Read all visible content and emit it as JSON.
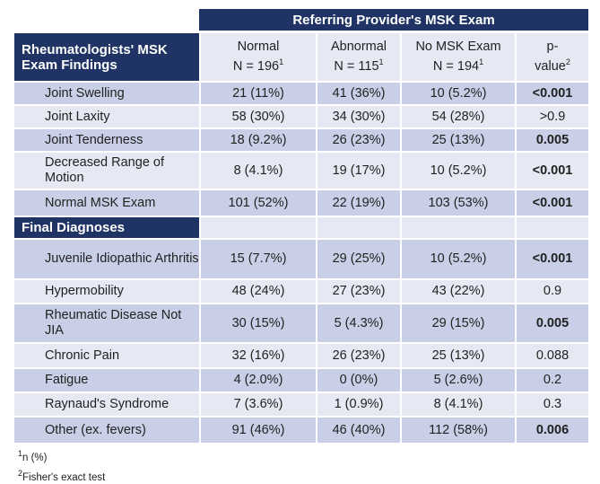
{
  "group_header": "Referring Provider's MSK Exam",
  "section1_title": "Rheumatologists' MSK Exam Findings",
  "section2_title": "Final Diagnoses",
  "columns": [
    {
      "label": "Normal",
      "n": "N = 196",
      "sup": "1"
    },
    {
      "label": "Abnormal",
      "n": "N = 115",
      "sup": "1"
    },
    {
      "label": "No MSK Exam",
      "n": "N = 194",
      "sup": "1"
    },
    {
      "label": "p-value",
      "sup": "2"
    }
  ],
  "section1_rows": [
    {
      "label": "Joint Swelling",
      "values": [
        "21 (11%)",
        "41 (36%)",
        "10 (5.2%)"
      ],
      "p": "<0.001",
      "bold": true
    },
    {
      "label": "Joint Laxity",
      "values": [
        "58 (30%)",
        "34 (30%)",
        "54 (28%)"
      ],
      "p": ">0.9",
      "bold": false
    },
    {
      "label": "Joint Tenderness",
      "values": [
        "18 (9.2%)",
        "26 (23%)",
        "25 (13%)"
      ],
      "p": "0.005",
      "bold": true
    },
    {
      "label": "Decreased Range of Motion",
      "values": [
        "8 (4.1%)",
        "19 (17%)",
        "10 (5.2%)"
      ],
      "p": "<0.001",
      "bold": true
    },
    {
      "label": "Normal MSK Exam",
      "values": [
        "101 (52%)",
        "22 (19%)",
        "103 (53%)"
      ],
      "p": "<0.001",
      "bold": true
    }
  ],
  "section2_rows": [
    {
      "label": "Juvenile Idiopathic Arthritis",
      "values": [
        "15 (7.7%)",
        "29 (25%)",
        "10 (5.2%)"
      ],
      "p": "<0.001",
      "bold": true
    },
    {
      "label": "Hypermobility",
      "values": [
        "48 (24%)",
        "27 (23%)",
        "43 (22%)"
      ],
      "p": "0.9",
      "bold": false
    },
    {
      "label": "Rheumatic Disease Not JIA",
      "values": [
        "30 (15%)",
        "5 (4.3%)",
        "29 (15%)"
      ],
      "p": "0.005",
      "bold": true
    },
    {
      "label": "Chronic Pain",
      "values": [
        "32 (16%)",
        "26 (23%)",
        "25 (13%)"
      ],
      "p": "0.088",
      "bold": false
    },
    {
      "label": "Fatigue",
      "values": [
        "4 (2.0%)",
        "0 (0%)",
        "5 (2.6%)"
      ],
      "p": "0.2",
      "bold": false
    },
    {
      "label": "Raynaud's Syndrome",
      "values": [
        "7 (3.6%)",
        "1 (0.9%)",
        "8 (4.1%)"
      ],
      "p": "0.3",
      "bold": false
    },
    {
      "label": "Other (ex. fevers)",
      "values": [
        "91 (46%)",
        "46 (40%)",
        "112 (58%)"
      ],
      "p": "0.006",
      "bold": true
    }
  ],
  "footnotes": [
    {
      "sup": "1",
      "text": "n (%)"
    },
    {
      "sup": "2",
      "text": "Fisher's exact test"
    }
  ],
  "colors": {
    "navy": "#1f3464",
    "row_dark": "#c9cfe6",
    "row_light": "#e6e9f3"
  }
}
